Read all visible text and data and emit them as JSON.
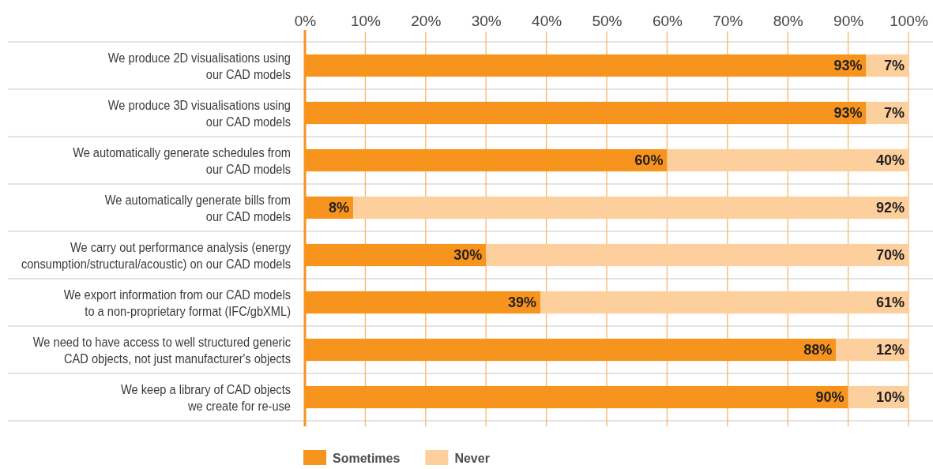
{
  "chart_data": {
    "type": "bar",
    "orientation": "horizontal",
    "stacked": true,
    "categories": [
      "We produce 2D visualisations using\nour CAD models",
      "We produce 3D visualisations using\nour CAD models",
      "We automatically generate schedules from\nour CAD models",
      "We automatically generate bills from\nour CAD models",
      "We carry out performance analysis (energy\nconsumption/structural/acoustic) on our CAD models",
      "We export information from our CAD models\nto a non-proprietary format (IFC/gbXML)",
      "We need to have access to well structured generic\nCAD objects, not just manufacturer's objects",
      "We keep a library of CAD objects\nwe create for re-use"
    ],
    "series": [
      {
        "name": "Sometimes",
        "color": "#f7941e",
        "values": [
          93,
          93,
          60,
          8,
          30,
          39,
          88,
          90
        ],
        "value_labels": [
          "93%",
          "93%",
          "60%",
          "8%",
          "30%",
          "39%",
          "88%",
          "90%"
        ]
      },
      {
        "name": "Never",
        "color": "#fdcf9c",
        "values": [
          7,
          7,
          40,
          92,
          70,
          61,
          12,
          10
        ],
        "value_labels": [
          "7%",
          "7%",
          "40%",
          "92%",
          "70%",
          "61%",
          "12%",
          "10%"
        ]
      }
    ],
    "xlim": [
      0,
      100
    ],
    "xticks": [
      {
        "value": 0,
        "label": "0%"
      },
      {
        "value": 10,
        "label": "10%"
      },
      {
        "value": 20,
        "label": "20%"
      },
      {
        "value": 30,
        "label": "30%"
      },
      {
        "value": 40,
        "label": "40%"
      },
      {
        "value": 50,
        "label": "50%"
      },
      {
        "value": 60,
        "label": "60%"
      },
      {
        "value": 70,
        "label": "70%"
      },
      {
        "value": 80,
        "label": "80%"
      },
      {
        "value": 90,
        "label": "90%"
      },
      {
        "value": 100,
        "label": "100%"
      }
    ],
    "grid": true,
    "legend": "bottom"
  }
}
